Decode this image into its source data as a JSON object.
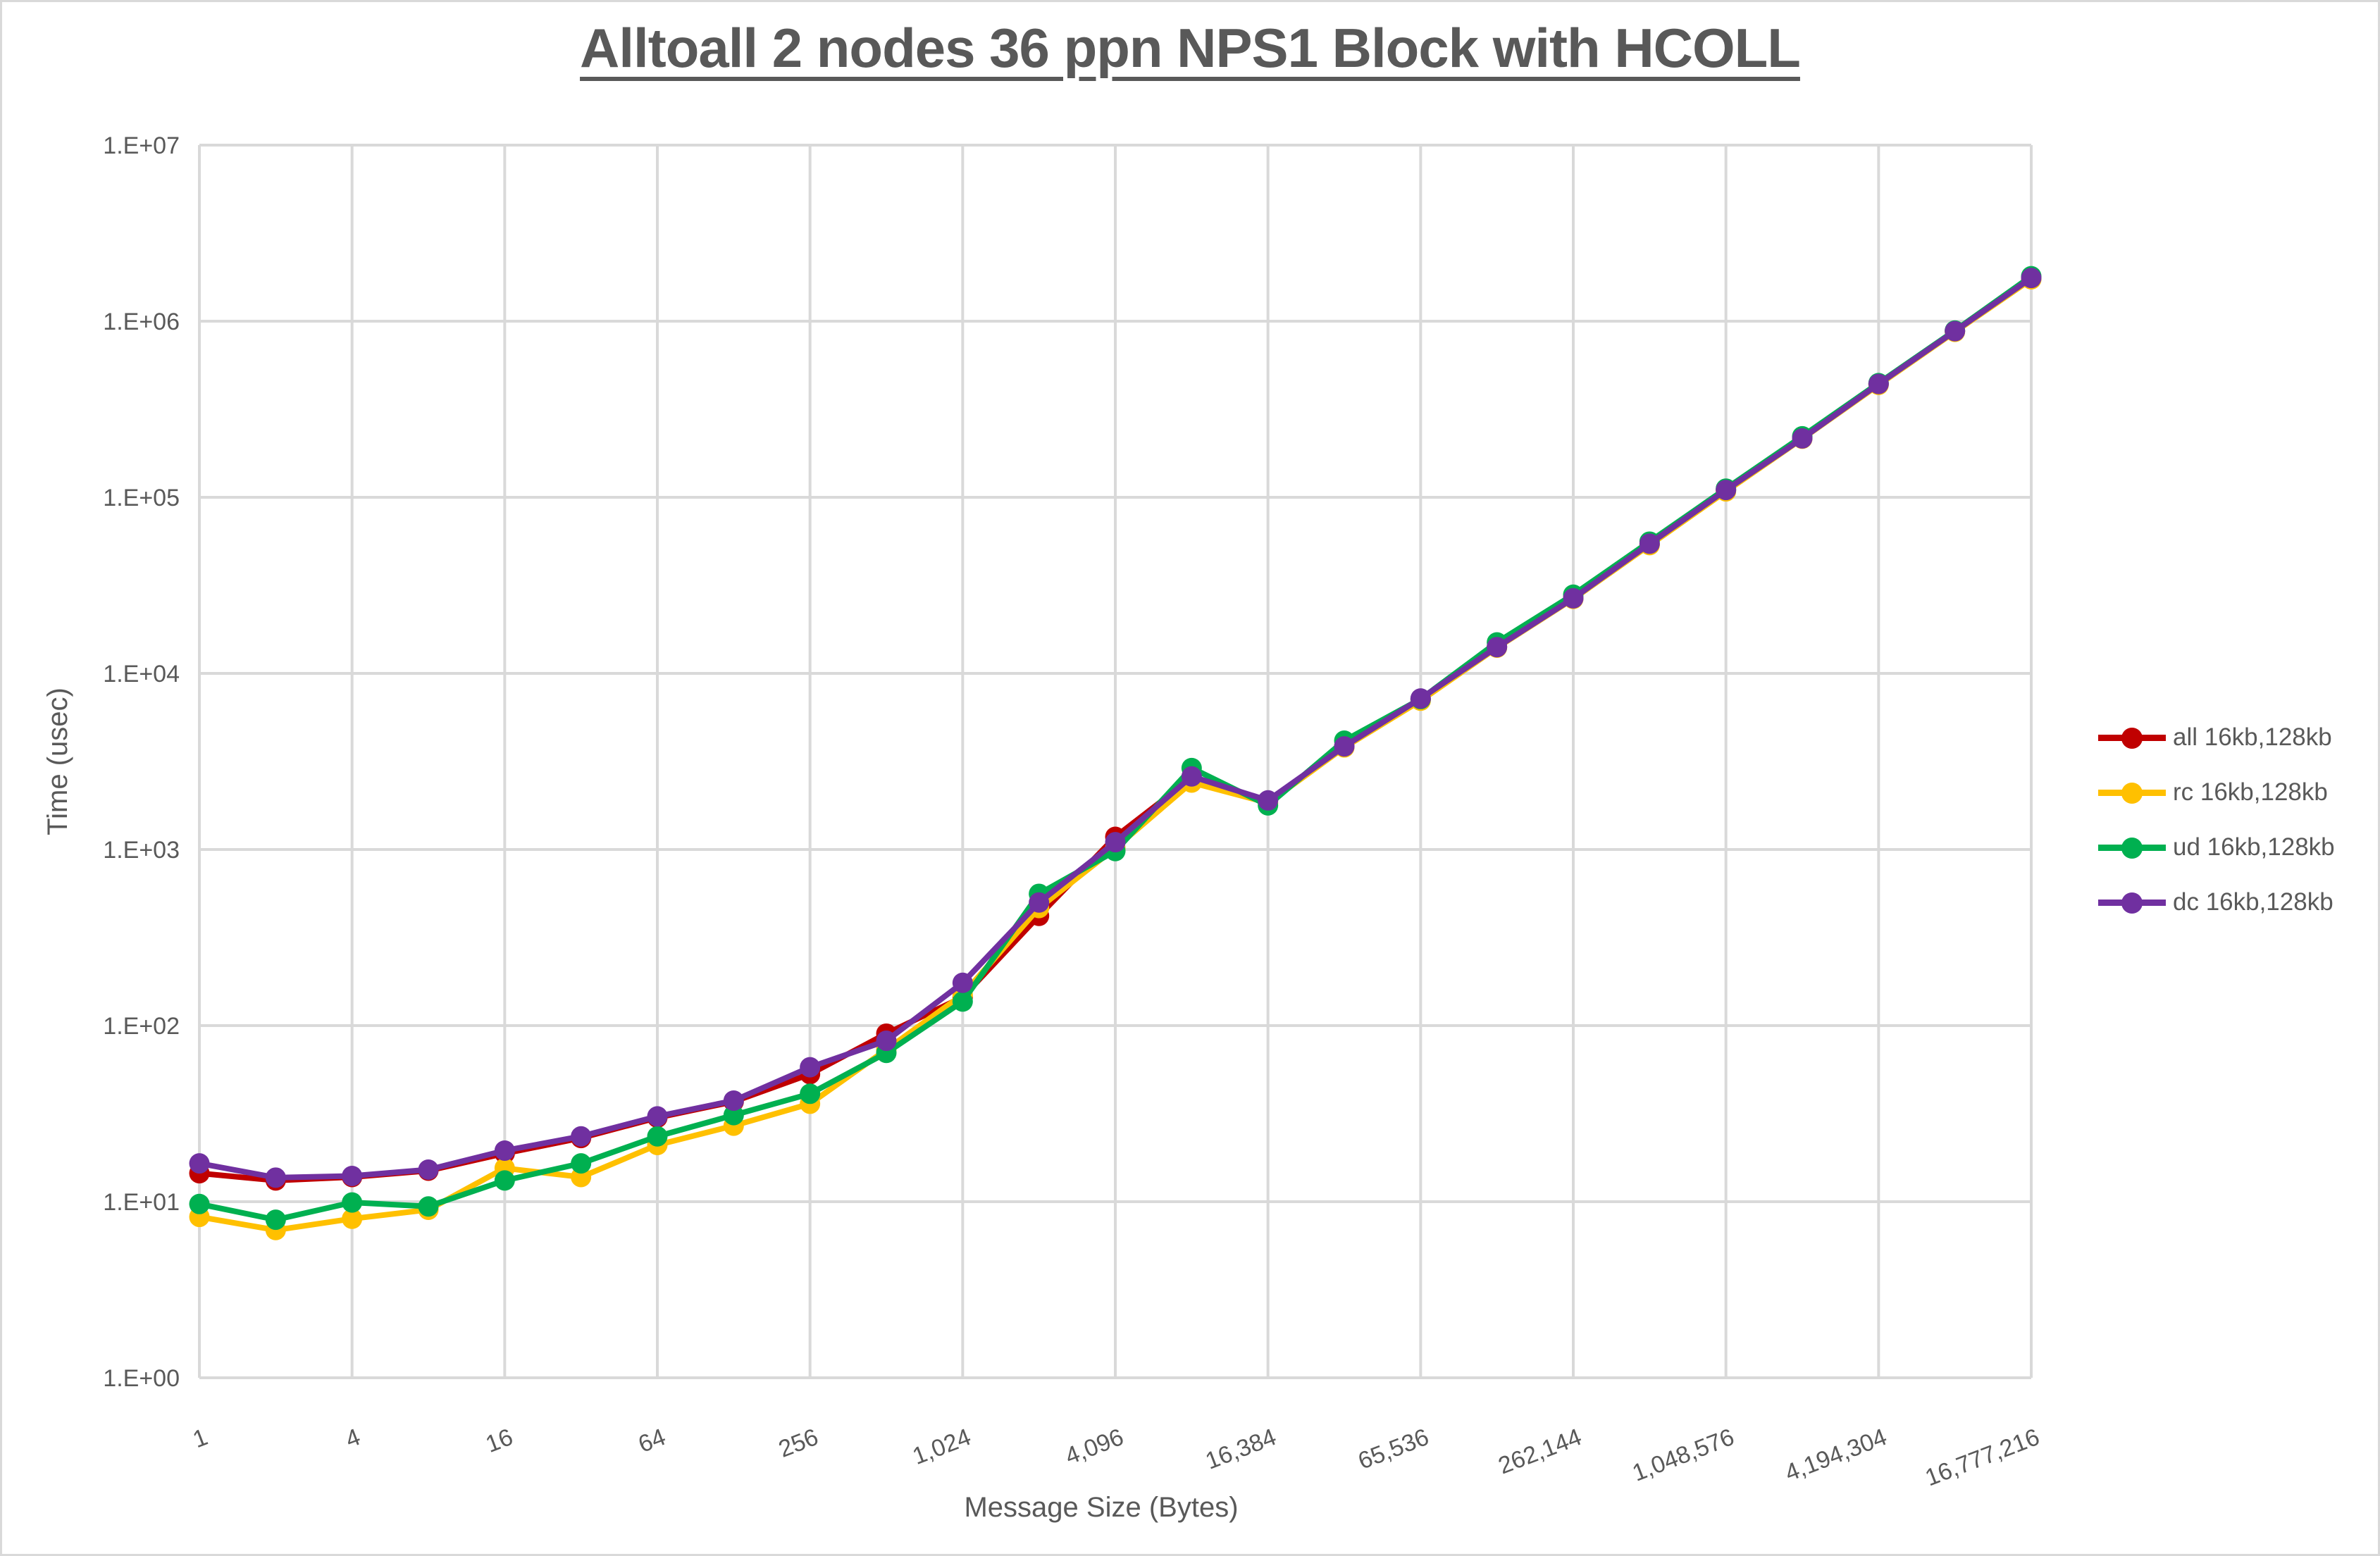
{
  "title": "Alltoall 2 nodes 36 ppn NPS1 Block with HCOLL",
  "colors": {
    "text": "#595959",
    "gridline": "#d9d9d9",
    "background": "#ffffff",
    "frame_border": "#d9d9d9"
  },
  "axes": {
    "x_title": "Message Size (Bytes)",
    "y_title": "Time (usec)",
    "x_tick_labels": [
      "1",
      "4",
      "16",
      "64",
      "256",
      "1,024",
      "4,096",
      "16,384",
      "65,536",
      "262,144",
      "1,048,576",
      "4,194,304",
      "16,777,216"
    ],
    "y_tick_labels": [
      "1.E+00",
      "1.E+01",
      "1.E+02",
      "1.E+03",
      "1.E+04",
      "1.E+05",
      "1.E+06",
      "1.E+07"
    ]
  },
  "chart_data": {
    "type": "line",
    "title": "Alltoall 2 nodes 36 ppn NPS1 Block with HCOLL",
    "xlabel": "Message Size (Bytes)",
    "ylabel": "Time (usec)",
    "x_scale": "log2",
    "y_scale": "log10",
    "xlim": [
      1,
      16777216
    ],
    "ylim": [
      1,
      10000000
    ],
    "grid": true,
    "legend_position": "right",
    "x": [
      1,
      2,
      4,
      8,
      16,
      32,
      64,
      128,
      256,
      512,
      1024,
      2048,
      4096,
      8192,
      16384,
      32768,
      65536,
      131072,
      262144,
      524288,
      1048576,
      2097152,
      4194304,
      8388608,
      16777216
    ],
    "series": [
      {
        "name": "all 16kb,128kb",
        "key": "all",
        "color": "#C00000",
        "values": [
          14.5,
          13.2,
          13.8,
          15,
          18.8,
          23,
          30,
          37,
          53,
          90,
          145,
          420,
          1180,
          2550,
          1890,
          3850,
          7100,
          14200,
          26800,
          54000,
          110000,
          218000,
          440000,
          880000,
          1750000
        ]
      },
      {
        "name": "rc 16kb,128kb",
        "key": "rc",
        "color": "#FFC000",
        "values": [
          8.2,
          6.9,
          8,
          9,
          15.5,
          13.8,
          21,
          27,
          36,
          73,
          150,
          465,
          1020,
          2400,
          1840,
          3800,
          7000,
          14000,
          26500,
          53500,
          108000,
          215000,
          435000,
          870000,
          1730000
        ]
      },
      {
        "name": "ud 16kb,128kb",
        "key": "ud",
        "color": "#00B050",
        "values": [
          9.7,
          7.9,
          9.9,
          9.4,
          13.2,
          16.5,
          23.5,
          31,
          41,
          70,
          137,
          560,
          980,
          2900,
          1780,
          4150,
          7150,
          15000,
          28000,
          56000,
          112000,
          222000,
          445000,
          885000,
          1800000
        ]
      },
      {
        "name": "dc 16kb,128kb",
        "key": "dc",
        "color": "#7030A0",
        "values": [
          16.5,
          13.7,
          14,
          15.2,
          19.5,
          23.5,
          30.5,
          37.5,
          58,
          82,
          175,
          500,
          1100,
          2600,
          1900,
          3850,
          7200,
          14100,
          26700,
          54500,
          110000,
          216000,
          440000,
          878000,
          1760000
        ]
      }
    ]
  }
}
